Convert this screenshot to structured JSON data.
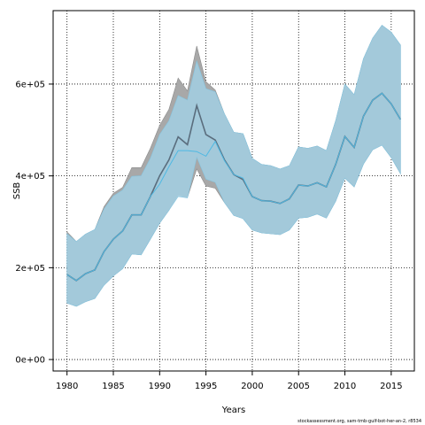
{
  "chart_data": {
    "type": "line",
    "xlabel": "Years",
    "ylabel": "SSB",
    "xlim": [
      1978.5,
      2017.5
    ],
    "ylim": [
      -25000,
      760000
    ],
    "x_ticks": [
      1980,
      1985,
      1990,
      1995,
      2000,
      2005,
      2010,
      2015
    ],
    "x_tick_labels": [
      "1980",
      "1985",
      "1990",
      "1995",
      "2000",
      "2005",
      "2010",
      "2015"
    ],
    "y_ticks": [
      0,
      200000,
      400000,
      600000
    ],
    "y_tick_labels": [
      "0e+00",
      "2e+05",
      "4e+05",
      "6e+05"
    ],
    "grid": true,
    "colors": {
      "outer_band": "#a8a8a8",
      "inner_band": "#a9d6ea",
      "outer_line": "#5a6d7d",
      "inner_line": "#4fb9e3",
      "overlap_band": "#9fc4d6"
    },
    "x": [
      1980,
      1981,
      1982,
      1983,
      1984,
      1985,
      1986,
      1987,
      1988,
      1989,
      1990,
      1991,
      1992,
      1993,
      1994,
      1995,
      1996,
      1997,
      1998,
      1999,
      2000,
      2001,
      2002,
      2003,
      2004,
      2005,
      2006,
      2007,
      2008,
      2009,
      2010,
      2011,
      2012,
      2013,
      2014,
      2015,
      2016
    ],
    "series": [
      {
        "values": [
          185000,
          172000,
          187000,
          195000,
          235000,
          262000,
          280000,
          315000,
          315000,
          355000,
          400000,
          435000,
          485000,
          468000,
          553000,
          490000,
          478000,
          435000,
          403000,
          392000,
          355000,
          346000,
          345000,
          340000,
          350000,
          380000,
          378000,
          385000,
          376000,
          425000,
          486000,
          462000,
          530000,
          565000,
          580000,
          557000,
          523000
        ],
        "lower": [
          123000,
          116000,
          126000,
          133000,
          162000,
          182000,
          198000,
          230000,
          228000,
          262000,
          297000,
          325000,
          360000,
          353000,
          415000,
          378000,
          373000,
          342000,
          314000,
          307000,
          282000,
          276000,
          274000,
          272000,
          282000,
          308000,
          310000,
          317000,
          308000,
          345000,
          395000,
          376000,
          426000,
          457000,
          467000,
          440000,
          405000
        ],
        "upper": [
          278000,
          257000,
          273000,
          283000,
          333000,
          362000,
          375000,
          418000,
          418000,
          460000,
          510000,
          545000,
          613000,
          585000,
          683000,
          605000,
          587000,
          535000,
          495000,
          492000,
          438000,
          425000,
          422000,
          415000,
          422000,
          463000,
          460000,
          465000,
          455000,
          520000,
          600000,
          577000,
          655000,
          700000,
          728000,
          713000,
          685000
        ]
      },
      {
        "values": [
          185000,
          172000,
          187000,
          195000,
          235000,
          262000,
          280000,
          315000,
          315000,
          355000,
          382000,
          420000,
          455000,
          455000,
          453000,
          443000,
          475000,
          433000,
          403000,
          395000,
          355000,
          346000,
          345000,
          340000,
          350000,
          380000,
          378000,
          385000,
          376000,
          425000,
          486000,
          462000,
          530000,
          565000,
          580000,
          557000,
          523000
        ],
        "lower": [
          123000,
          116000,
          126000,
          133000,
          162000,
          182000,
          198000,
          230000,
          228000,
          262000,
          297000,
          325000,
          355000,
          352000,
          441000,
          393000,
          386000,
          342000,
          314000,
          307000,
          282000,
          276000,
          274000,
          272000,
          282000,
          308000,
          310000,
          317000,
          308000,
          345000,
          395000,
          376000,
          426000,
          457000,
          467000,
          440000,
          405000
        ],
        "upper": [
          274000,
          257000,
          273000,
          283000,
          328000,
          356000,
          369000,
          399000,
          400000,
          438000,
          490000,
          520000,
          575000,
          565000,
          650000,
          590000,
          583000,
          535000,
          495000,
          492000,
          438000,
          425000,
          422000,
          415000,
          422000,
          463000,
          460000,
          465000,
          455000,
          520000,
          600000,
          577000,
          655000,
          700000,
          728000,
          713000,
          685000
        ]
      }
    ]
  },
  "footnote": "stockassessment.org, sam-tmb-gulf-bot-her-an-2, r8534"
}
